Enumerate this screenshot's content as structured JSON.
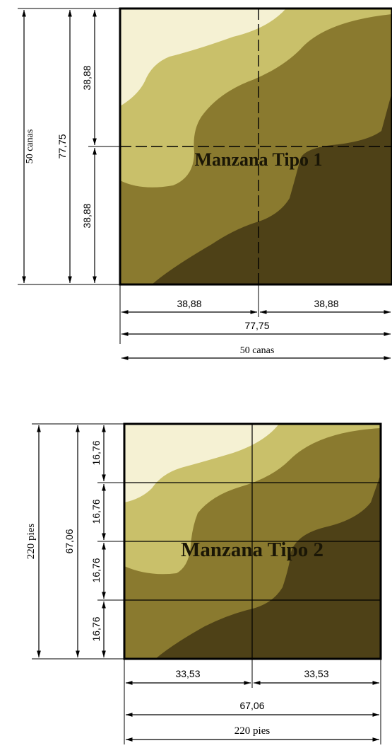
{
  "blocks": [
    {
      "title": "Manzana Tipo 1",
      "vertical": {
        "total_label": "50 canas",
        "sub_total_label": "77,75",
        "parts": [
          "38,88",
          "38,88"
        ]
      },
      "horizontal": {
        "parts": [
          "38,88",
          "38,88"
        ],
        "sub_total_label": "77,75",
        "total_label": "50 canas"
      }
    },
    {
      "title": "Manzana Tipo 2",
      "vertical": {
        "total_label": "220 pies",
        "sub_total_label": "67,06",
        "parts": [
          "16,76",
          "16,76",
          "16,76",
          "16,76"
        ]
      },
      "horizontal": {
        "parts": [
          "33,53",
          "33,53"
        ],
        "sub_total_label": "67,06",
        "total_label": "220 pies"
      }
    }
  ],
  "colors": {
    "zone_lightest": "#f5f1d3",
    "zone_light": "#c9c06a",
    "zone_mid": "#8a7a2f",
    "zone_dark": "#4e4117",
    "line": "#000000"
  }
}
